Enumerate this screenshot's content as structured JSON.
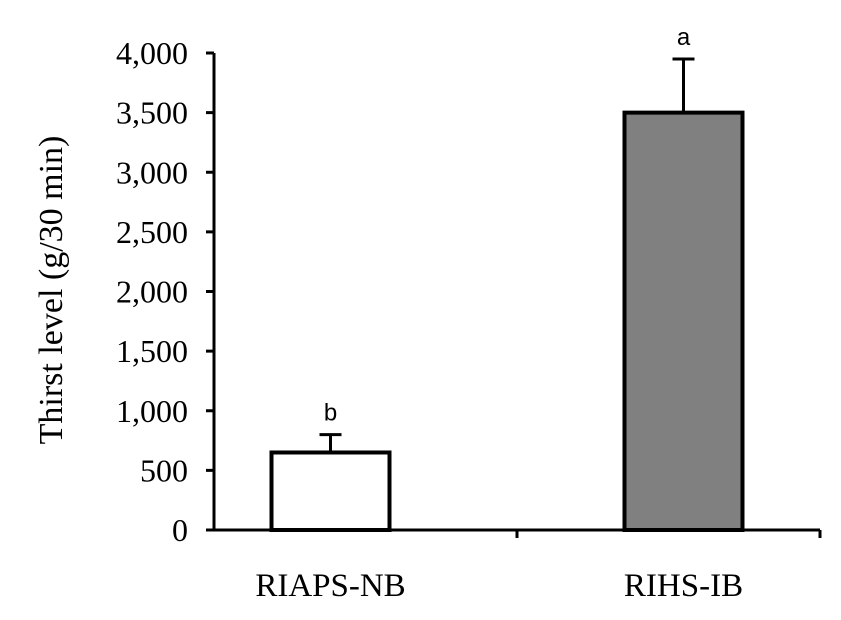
{
  "chart_data": {
    "type": "bar",
    "title": "",
    "xlabel": "",
    "ylabel": "Thirst level (g/30 min)",
    "ylim": [
      0,
      4000
    ],
    "yticks": [
      0,
      500,
      1000,
      1500,
      2000,
      2500,
      3000,
      3500,
      4000
    ],
    "ytick_labels": [
      "0",
      "500",
      "1,000",
      "1,500",
      "2,000",
      "2,500",
      "3,000",
      "3,500",
      "4,000"
    ],
    "categories": [
      "RIAPS-NB",
      "RIHS-IB"
    ],
    "values": [
      650,
      3500
    ],
    "errors": [
      150,
      450
    ],
    "significance": [
      "b",
      "a"
    ],
    "bar_colors": [
      "#ffffff",
      "#808080"
    ],
    "bar_edge_color": "#000000",
    "grid": false,
    "legend": "none"
  }
}
